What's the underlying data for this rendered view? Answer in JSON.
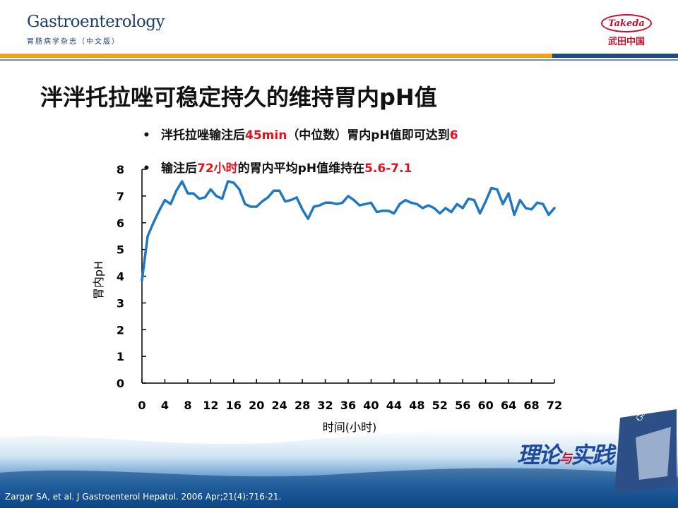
{
  "header": {
    "journal_name": "Gastroenterology",
    "journal_subtitle": "胃肠病学杂志（中文版）",
    "sponsor_logo_text": "Takeda",
    "sponsor_name_cn": "武田中国"
  },
  "slide": {
    "title": "泮泮托拉唑可稳定持久的维持胃内pH值",
    "bullets": [
      {
        "marker": "•",
        "parts": [
          "泮托拉唑输注后",
          "45min",
          "（中位数）胃内pH值即可达到",
          "6"
        ]
      },
      {
        "marker": "•",
        "parts": [
          "输注后",
          "72小时",
          "的胃内平均pH值维持在",
          "5.6-7.1"
        ]
      }
    ]
  },
  "chart_data": {
    "type": "line",
    "xlabel": "时间(小时)",
    "ylabel": "胃内pH",
    "xlim": [
      0,
      72
    ],
    "ylim": [
      0,
      8
    ],
    "x_ticks": [
      0,
      4,
      8,
      12,
      16,
      20,
      24,
      28,
      32,
      36,
      40,
      44,
      48,
      52,
      56,
      60,
      64,
      68,
      72
    ],
    "y_ticks": [
      0,
      1,
      2,
      3,
      4,
      5,
      6,
      7,
      8
    ],
    "color": "#1f78c1",
    "grid": false,
    "series": [
      {
        "x": [
          0,
          1,
          2,
          3,
          4,
          5,
          6,
          7,
          8,
          9,
          10,
          11,
          12,
          13,
          14,
          15,
          16,
          17,
          18,
          19,
          20,
          21,
          22,
          23,
          24,
          25,
          26,
          27,
          28,
          29,
          30,
          31,
          32,
          33,
          34,
          35,
          36,
          37,
          38,
          39,
          40,
          41,
          42,
          43,
          44,
          45,
          46,
          47,
          48,
          49,
          50,
          51,
          52,
          53,
          54,
          55,
          56,
          57,
          58,
          59,
          60,
          61,
          62,
          63,
          64,
          65,
          66,
          67,
          68,
          69,
          70,
          71,
          72
        ],
        "values": [
          3.85,
          5.5,
          6.0,
          6.45,
          6.85,
          6.7,
          7.2,
          7.55,
          7.1,
          7.1,
          6.9,
          6.95,
          7.25,
          7.0,
          6.9,
          7.55,
          7.5,
          7.25,
          6.7,
          6.6,
          6.6,
          6.8,
          6.95,
          7.2,
          7.2,
          6.8,
          6.85,
          6.95,
          6.5,
          6.15,
          6.6,
          6.65,
          6.75,
          6.75,
          6.7,
          6.75,
          7.0,
          6.85,
          6.65,
          6.7,
          6.75,
          6.4,
          6.45,
          6.45,
          6.35,
          6.7,
          6.85,
          6.75,
          6.7,
          6.55,
          6.65,
          6.55,
          6.35,
          6.55,
          6.4,
          6.7,
          6.55,
          6.9,
          6.85,
          6.35,
          6.8,
          7.3,
          7.25,
          6.7,
          7.1,
          6.3,
          6.85,
          6.55,
          6.5,
          6.75,
          6.7,
          6.3,
          6.55
        ]
      }
    ]
  },
  "footer": {
    "citation": "Zargar SA, et al. J Gastroenterol Hepatol. 2006 Apr;21(4):716-21.",
    "slogan_a": "理论",
    "slogan_b": "与",
    "slogan_c": "实践",
    "magazine_cover_text": "Gastroenterology"
  }
}
